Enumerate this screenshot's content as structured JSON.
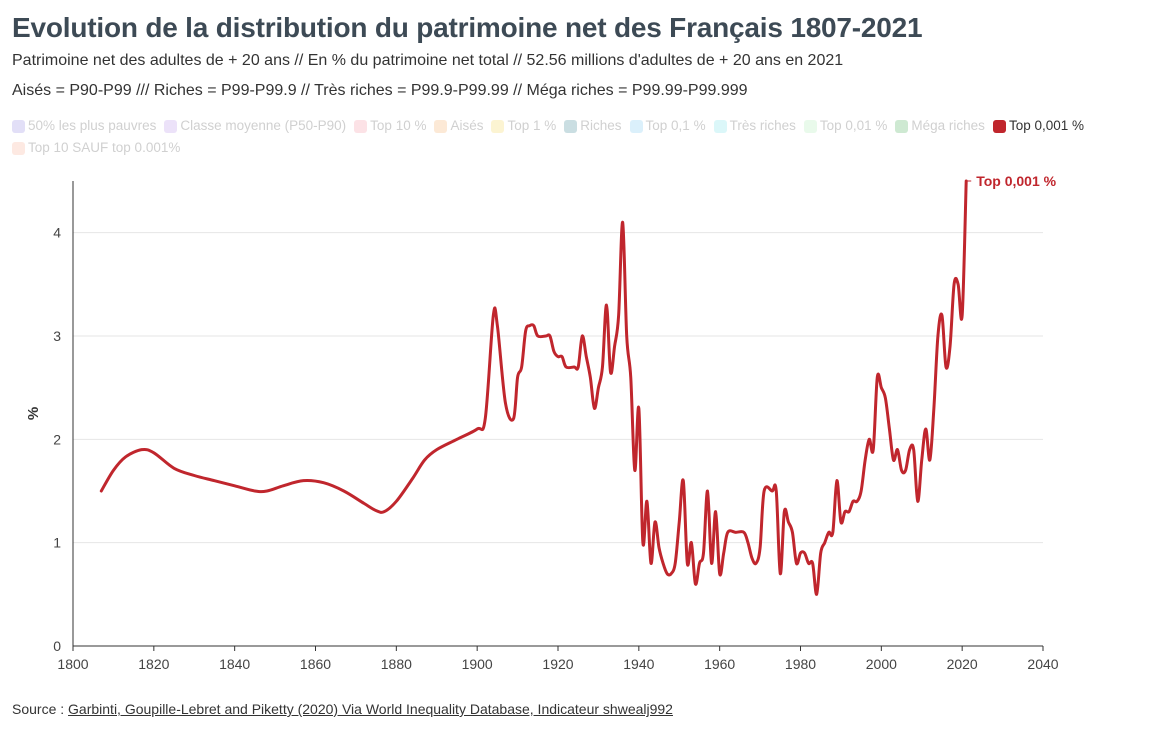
{
  "title": "Evolution de la distribution du patrimoine net des Français 1807-2021",
  "subtitle": "Patrimoine net des adultes de + 20 ans // En % du patrimoine net total // 52.56 millions d'adultes de + 20 ans en 2021",
  "subtitle2": "Aisés = P90-P99 /// Riches = P99-P99.9 // Très riches = P99.9-P99.99 // Méga riches = P99.99-P99.999",
  "legend": [
    {
      "label": "50% les plus pauvres",
      "color": "#8a7fe0",
      "active": false
    },
    {
      "label": "Classe moyenne (P50-P90)",
      "color": "#b58ae8",
      "active": false
    },
    {
      "label": "Top 10 %",
      "color": "#f28b9a",
      "active": false
    },
    {
      "label": "Aisés",
      "color": "#f4a65c",
      "active": false
    },
    {
      "label": "Top 1 %",
      "color": "#f3d24a",
      "active": false
    },
    {
      "label": "Riches",
      "color": "#2a7a8c",
      "active": false
    },
    {
      "label": "Top 0,1 %",
      "color": "#6fc3ef",
      "active": false
    },
    {
      "label": "Très riches",
      "color": "#6ee0e8",
      "active": false
    },
    {
      "label": "Top 0,01 %",
      "color": "#a8ecb0",
      "active": false
    },
    {
      "label": "Méga riches",
      "color": "#3aa84a",
      "active": false
    },
    {
      "label": "Top 0,001 %",
      "color": "#c0262d",
      "active": true
    },
    {
      "label": "Top 10 SAUF top 0.001%",
      "color": "#f6a88c",
      "active": false
    }
  ],
  "source": {
    "prefix": "Source : ",
    "link_text": "Garbinti, Goupille-Lebret and Piketty (2020) Via World Inequality Database, Indicateur shwealj992"
  },
  "chart_data": {
    "type": "line",
    "title": "Evolution de la distribution du patrimoine net des Français 1807-2021",
    "xlabel": "",
    "ylabel": "%",
    "xlim": [
      1800,
      2040
    ],
    "ylim": [
      0,
      4.5
    ],
    "x_ticks": [
      1800,
      1820,
      1840,
      1860,
      1880,
      1900,
      1920,
      1940,
      1960,
      1980,
      2000,
      2020,
      2040
    ],
    "y_ticks": [
      0,
      1,
      2,
      3,
      4
    ],
    "grid": true,
    "series": [
      {
        "name": "Top 0,001 %",
        "color": "#c0262d",
        "end_label": "Top 0,001 %",
        "points": [
          [
            1807,
            1.5
          ],
          [
            1810,
            1.7
          ],
          [
            1813,
            1.83
          ],
          [
            1817,
            1.9
          ],
          [
            1820,
            1.87
          ],
          [
            1825,
            1.72
          ],
          [
            1830,
            1.65
          ],
          [
            1835,
            1.6
          ],
          [
            1840,
            1.55
          ],
          [
            1845,
            1.5
          ],
          [
            1848,
            1.5
          ],
          [
            1852,
            1.55
          ],
          [
            1857,
            1.6
          ],
          [
            1862,
            1.58
          ],
          [
            1867,
            1.5
          ],
          [
            1872,
            1.38
          ],
          [
            1875,
            1.31
          ],
          [
            1877,
            1.3
          ],
          [
            1880,
            1.4
          ],
          [
            1884,
            1.62
          ],
          [
            1887,
            1.8
          ],
          [
            1890,
            1.9
          ],
          [
            1895,
            2.0
          ],
          [
            1900,
            2.1
          ],
          [
            1902,
            2.2
          ],
          [
            1904,
            3.2
          ],
          [
            1905,
            3.1
          ],
          [
            1907,
            2.35
          ],
          [
            1909,
            2.2
          ],
          [
            1910,
            2.6
          ],
          [
            1911,
            2.7
          ],
          [
            1912,
            3.05
          ],
          [
            1913,
            3.1
          ],
          [
            1914,
            3.1
          ],
          [
            1915,
            3.0
          ],
          [
            1917,
            3.0
          ],
          [
            1918,
            3.0
          ],
          [
            1919,
            2.85
          ],
          [
            1920,
            2.8
          ],
          [
            1921,
            2.8
          ],
          [
            1922,
            2.7
          ],
          [
            1924,
            2.7
          ],
          [
            1925,
            2.7
          ],
          [
            1926,
            3.0
          ],
          [
            1927,
            2.8
          ],
          [
            1928,
            2.6
          ],
          [
            1929,
            2.3
          ],
          [
            1930,
            2.5
          ],
          [
            1931,
            2.7
          ],
          [
            1932,
            3.3
          ],
          [
            1933,
            2.65
          ],
          [
            1934,
            2.9
          ],
          [
            1935,
            3.2
          ],
          [
            1936,
            4.1
          ],
          [
            1937,
            3.0
          ],
          [
            1938,
            2.6
          ],
          [
            1939,
            1.7
          ],
          [
            1940,
            2.3
          ],
          [
            1941,
            1.0
          ],
          [
            1942,
            1.4
          ],
          [
            1943,
            0.8
          ],
          [
            1944,
            1.2
          ],
          [
            1945,
            0.95
          ],
          [
            1946,
            0.8
          ],
          [
            1947,
            0.7
          ],
          [
            1948,
            0.7
          ],
          [
            1949,
            0.8
          ],
          [
            1950,
            1.2
          ],
          [
            1951,
            1.6
          ],
          [
            1952,
            0.8
          ],
          [
            1953,
            1.0
          ],
          [
            1954,
            0.6
          ],
          [
            1955,
            0.8
          ],
          [
            1956,
            0.9
          ],
          [
            1957,
            1.5
          ],
          [
            1958,
            0.8
          ],
          [
            1959,
            1.3
          ],
          [
            1960,
            0.7
          ],
          [
            1961,
            0.9
          ],
          [
            1962,
            1.1
          ],
          [
            1964,
            1.1
          ],
          [
            1966,
            1.1
          ],
          [
            1967,
            1.0
          ],
          [
            1968,
            0.85
          ],
          [
            1969,
            0.8
          ],
          [
            1970,
            0.95
          ],
          [
            1971,
            1.5
          ],
          [
            1973,
            1.5
          ],
          [
            1974,
            1.5
          ],
          [
            1975,
            0.7
          ],
          [
            1976,
            1.3
          ],
          [
            1977,
            1.2
          ],
          [
            1978,
            1.1
          ],
          [
            1979,
            0.8
          ],
          [
            1980,
            0.9
          ],
          [
            1981,
            0.9
          ],
          [
            1982,
            0.8
          ],
          [
            1983,
            0.8
          ],
          [
            1984,
            0.5
          ],
          [
            1985,
            0.9
          ],
          [
            1986,
            1.0
          ],
          [
            1987,
            1.1
          ],
          [
            1988,
            1.1
          ],
          [
            1989,
            1.6
          ],
          [
            1990,
            1.2
          ],
          [
            1991,
            1.3
          ],
          [
            1992,
            1.3
          ],
          [
            1993,
            1.4
          ],
          [
            1994,
            1.4
          ],
          [
            1995,
            1.5
          ],
          [
            1996,
            1.8
          ],
          [
            1997,
            2.0
          ],
          [
            1998,
            1.9
          ],
          [
            1999,
            2.6
          ],
          [
            2000,
            2.5
          ],
          [
            2001,
            2.4
          ],
          [
            2002,
            2.1
          ],
          [
            2003,
            1.8
          ],
          [
            2004,
            1.9
          ],
          [
            2005,
            1.7
          ],
          [
            2006,
            1.7
          ],
          [
            2007,
            1.9
          ],
          [
            2008,
            1.9
          ],
          [
            2009,
            1.4
          ],
          [
            2010,
            1.8
          ],
          [
            2011,
            2.1
          ],
          [
            2012,
            1.8
          ],
          [
            2013,
            2.3
          ],
          [
            2014,
            3.0
          ],
          [
            2015,
            3.2
          ],
          [
            2016,
            2.7
          ],
          [
            2017,
            2.9
          ],
          [
            2018,
            3.5
          ],
          [
            2019,
            3.5
          ],
          [
            2020,
            3.2
          ],
          [
            2021,
            4.5
          ]
        ]
      }
    ]
  }
}
